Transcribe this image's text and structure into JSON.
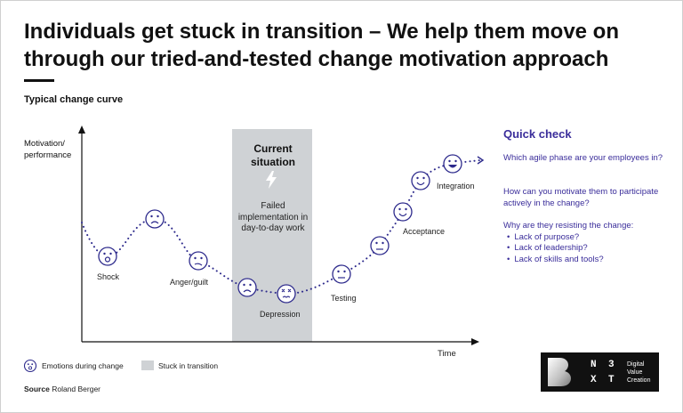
{
  "title": "Individuals get stuck in transition – We help them move on through our tried-and-tested change motivation approach",
  "subtitle": "Typical change curve",
  "y_axis_label": "Motivation/ performance",
  "x_axis_label": "Time",
  "stuck_zone": {
    "heading": "Current situation",
    "detail": "Failed implementation in day-to-day work"
  },
  "stages": {
    "shock": "Shock",
    "anger": "Anger/guilt",
    "depression": "Depression",
    "testing": "Testing",
    "acceptance": "Acceptance",
    "integration": "Integration"
  },
  "quick_check": {
    "title": "Quick check",
    "q1": "Which agile phase are your employees in?",
    "q2": "How can you motivate them to participate actively in the change?",
    "q3": "Why are they resisting the change:",
    "bullets": [
      "Lack of purpose?",
      "Lack of leadership?",
      "Lack of skills and tools?"
    ]
  },
  "legend": {
    "emotions": "Emotions during change",
    "stuck": "Stuck in transition"
  },
  "source": {
    "label": "Source",
    "value": "Roland Berger"
  },
  "logo": {
    "letters": [
      "N",
      "3",
      "X",
      "T"
    ],
    "line1": "Digital",
    "line2": "Value",
    "line3": "Creation"
  },
  "colors": {
    "accent": "#3a2d9a",
    "stuck_zone": "#cfd2d5",
    "dots": "#2d2a8c"
  },
  "icons": [
    "surprised-face-icon",
    "sad-face-icon",
    "confused-face-icon",
    "frown-face-icon",
    "dizzy-face-icon",
    "neutral-face-icon",
    "smile-face-icon",
    "grin-face-icon",
    "lightning-icon",
    "b-logo-icon"
  ]
}
